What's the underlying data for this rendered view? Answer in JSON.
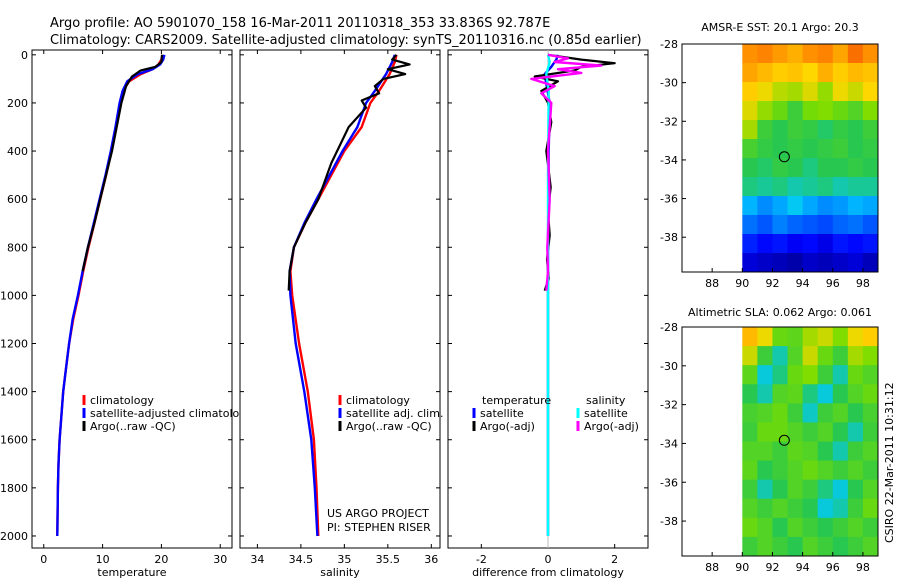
{
  "header": {
    "line1": "Argo profile: AO 5901070_158 16-Mar-2011 20110318_353 33.836S 92.787E",
    "line2": "Climatology: CARS2009. Satellite-adjusted climatology: synTS_20110316.nc (0.85d earlier)"
  },
  "credit": "CSIRO 22-Mar-2011 10:31:12",
  "project": {
    "line1": "US ARGO PROJECT",
    "line2": "PI: STEPHEN RISER"
  },
  "colors": {
    "climatology": "#ff0000",
    "satellite": "#0000ff",
    "argo": "#000000",
    "sal_satellite": "#00ffff",
    "sal_argo": "#ff00ff"
  },
  "chart_data": [
    {
      "id": "temperature",
      "type": "line",
      "xlabel": "temperature",
      "ylabel": "",
      "xlim": [
        -2,
        32
      ],
      "ylim": [
        2050,
        -20
      ],
      "xticks": [
        0,
        10,
        20,
        30
      ],
      "yticks": [
        0,
        200,
        400,
        600,
        800,
        1000,
        1200,
        1400,
        1600,
        1800,
        2000
      ],
      "legend": {
        "position": "lower-center",
        "entries": [
          "climatology",
          "satellite-adjusted climatology",
          "Argo(..raw -QC)"
        ]
      },
      "series": [
        {
          "name": "climatology",
          "color": "#ff0000",
          "x": [
            20.2,
            20.0,
            19.5,
            18.5,
            16.5,
            14.5,
            13.5,
            13.0,
            12.3,
            11.5,
            10.6,
            9.6,
            8.6,
            7.6,
            6.7,
            5.9,
            5.0,
            4.3,
            3.8,
            3.3,
            3.0,
            2.7,
            2.5,
            2.4,
            2.3
          ],
          "y": [
            0,
            20,
            40,
            60,
            80,
            110,
            150,
            200,
            300,
            400,
            500,
            600,
            700,
            800,
            900,
            1000,
            1100,
            1200,
            1300,
            1400,
            1500,
            1600,
            1700,
            1800,
            2000
          ]
        },
        {
          "name": "satellite-adjusted climatology",
          "color": "#0000ff",
          "x": [
            20.5,
            20.3,
            19.8,
            18.5,
            16.0,
            14.2,
            13.4,
            12.9,
            12.2,
            11.4,
            10.5,
            9.5,
            8.5,
            7.5,
            6.6,
            5.8,
            4.9,
            4.3,
            3.8,
            3.3,
            3.0,
            2.7,
            2.5,
            2.4,
            2.3
          ],
          "y": [
            0,
            20,
            40,
            60,
            80,
            110,
            150,
            200,
            300,
            400,
            500,
            600,
            700,
            800,
            900,
            1000,
            1100,
            1200,
            1300,
            1400,
            1500,
            1600,
            1700,
            1800,
            2000
          ]
        },
        {
          "name": "Argo(..raw -QC)",
          "color": "#000000",
          "x": [
            20.1,
            20.0,
            19.0,
            16.5,
            15.0,
            14.0,
            13.2,
            12.4,
            11.6,
            10.6,
            9.6,
            8.6,
            7.5,
            6.6
          ],
          "y": [
            0,
            30,
            50,
            65,
            90,
            130,
            200,
            300,
            400,
            500,
            600,
            700,
            800,
            900
          ]
        }
      ]
    },
    {
      "id": "salinity",
      "type": "line",
      "xlabel": "salinity",
      "ylabel": "",
      "xlim": [
        33.8,
        36.1
      ],
      "ylim": [
        2050,
        -20
      ],
      "xticks": [
        34,
        34.5,
        35,
        35.5,
        36
      ],
      "yticks": [
        0,
        200,
        400,
        600,
        800,
        1000,
        1200,
        1400,
        1600,
        1800,
        2000
      ],
      "legend": {
        "position": "lower-right",
        "entries": [
          "climatology",
          "satellite adj. clim.",
          "Argo(..raw -QC)"
        ]
      },
      "series": [
        {
          "name": "climatology",
          "color": "#ff0000",
          "x": [
            35.6,
            35.58,
            35.52,
            35.4,
            35.3,
            35.2,
            35.0,
            34.85,
            34.7,
            34.55,
            34.42,
            34.38,
            34.4,
            34.48,
            34.58,
            34.65,
            34.68,
            34.7
          ],
          "y": [
            0,
            30,
            80,
            150,
            200,
            300,
            400,
            500,
            600,
            700,
            800,
            900,
            1000,
            1200,
            1400,
            1600,
            1800,
            2000
          ]
        },
        {
          "name": "satellite adj. clim.",
          "color": "#0000ff",
          "x": [
            35.58,
            35.55,
            35.48,
            35.35,
            35.25,
            35.15,
            34.98,
            34.83,
            34.68,
            34.54,
            34.42,
            34.37,
            34.38,
            34.44,
            34.54,
            34.62,
            34.66,
            34.69
          ],
          "y": [
            0,
            30,
            80,
            150,
            200,
            300,
            400,
            500,
            600,
            700,
            800,
            900,
            1000,
            1200,
            1400,
            1600,
            1800,
            2000
          ]
        },
        {
          "name": "Argo(..raw -QC)",
          "color": "#000000",
          "x": [
            35.6,
            35.55,
            35.75,
            35.5,
            35.7,
            35.45,
            35.35,
            35.4,
            35.2,
            35.25,
            35.05,
            34.85,
            34.7,
            34.55,
            34.42,
            34.37,
            34.36
          ],
          "y": [
            0,
            20,
            40,
            60,
            80,
            100,
            130,
            160,
            190,
            220,
            300,
            450,
            600,
            700,
            800,
            900,
            980
          ]
        }
      ]
    },
    {
      "id": "difference",
      "type": "line",
      "xlabel": "difference from climatology",
      "ylabel": "",
      "xlim": [
        -3,
        3
      ],
      "ylim": [
        2050,
        -20
      ],
      "xticks": [
        -2,
        0,
        2
      ],
      "yticks": [
        0,
        200,
        400,
        600,
        800,
        1000,
        1200,
        1400,
        1600,
        1800,
        2000
      ],
      "legend": {
        "position": "lower-center",
        "groups": [
          {
            "title": "temperature",
            "entries": [
              "satellite",
              "Argo(-adj)"
            ]
          },
          {
            "title": "salinity",
            "entries": [
              "satellite",
              "Argo(-adj)"
            ]
          }
        ]
      },
      "series": [
        {
          "name": "temperature satellite",
          "color": "#0000ff",
          "x": [
            0.3,
            0.25,
            0.1,
            -0.1,
            -0.05,
            0.05,
            0.02,
            0.0,
            0.0
          ],
          "y": [
            0,
            20,
            50,
            80,
            120,
            200,
            400,
            800,
            2000
          ]
        },
        {
          "name": "temperature Argo(-adj)",
          "color": "#000000",
          "x": [
            0.0,
            1.0,
            2.0,
            1.0,
            0.8,
            -0.4,
            0.3,
            -0.2,
            0.0,
            0.1,
            -0.05,
            0.08,
            0.0,
            0.05,
            -0.03,
            0.02,
            -0.1
          ],
          "y": [
            0,
            20,
            35,
            50,
            65,
            90,
            110,
            150,
            200,
            280,
            400,
            550,
            650,
            750,
            850,
            930,
            980
          ]
        },
        {
          "name": "salinity satellite",
          "color": "#00ffff",
          "x": [
            0.0,
            0.05,
            -0.05,
            0.02,
            0.0,
            0.0
          ],
          "y": [
            0,
            30,
            80,
            150,
            500,
            2000
          ]
        },
        {
          "name": "salinity Argo(-adj)",
          "color": "#ff00ff",
          "x": [
            0.0,
            0.6,
            0.2,
            1.6,
            0.3,
            1.0,
            -0.5,
            0.2,
            -0.2,
            0.1,
            0.0,
            0.05,
            -0.02,
            0.0,
            -0.05
          ],
          "y": [
            0,
            15,
            30,
            45,
            60,
            75,
            100,
            130,
            160,
            200,
            400,
            600,
            800,
            900,
            980
          ]
        }
      ]
    },
    {
      "id": "sst-map",
      "type": "heatmap",
      "title": "AMSR-E SST: 20.1  Argo: 20.3",
      "xlim": [
        86,
        99
      ],
      "ylim": [
        -39.8,
        -28
      ],
      "xticks": [
        88,
        90,
        92,
        94,
        96,
        98
      ],
      "yticks": [
        -28,
        -30,
        -32,
        -34,
        -36,
        -38
      ],
      "marker": {
        "lon": 92.787,
        "lat": -33.836
      },
      "data_coverage_lon": [
        90,
        99
      ],
      "colorscale": "jet",
      "value_range": [
        17,
        23
      ],
      "rows_lat_top_to_bottom": [
        -28.5,
        -29.5,
        -30.5,
        -31.5,
        -32.5,
        -33.5,
        -34.5,
        -35.5,
        -36.5,
        -37.5,
        -38.5,
        -39.5
      ],
      "cols_lon_left_to_right": [
        90.5,
        91.5,
        92.5,
        93.5,
        94.5,
        95.5,
        96.5,
        97.5,
        98.5
      ],
      "values": [
        [
          22.2,
          22.3,
          22.1,
          21.9,
          22.2,
          22.3,
          22.0,
          22.4,
          22.2
        ],
        [
          22.0,
          21.8,
          21.6,
          21.7,
          21.5,
          21.9,
          21.6,
          21.8,
          21.7
        ],
        [
          21.6,
          21.4,
          21.1,
          21.0,
          21.3,
          20.9,
          21.4,
          21.2,
          21.5
        ],
        [
          21.3,
          20.9,
          20.6,
          20.2,
          20.7,
          20.8,
          20.6,
          20.4,
          20.8
        ],
        [
          21.0,
          20.2,
          20.0,
          20.2,
          20.1,
          19.9,
          20.1,
          20.0,
          20.2
        ],
        [
          20.3,
          20.1,
          20.0,
          20.1,
          20.0,
          20.1,
          20.2,
          20.0,
          20.1
        ],
        [
          20.0,
          19.9,
          20.1,
          20.0,
          19.8,
          20.0,
          20.0,
          20.1,
          20.0
        ],
        [
          19.8,
          19.7,
          19.8,
          19.6,
          19.7,
          19.8,
          19.6,
          19.7,
          19.7
        ],
        [
          19.1,
          18.8,
          19.0,
          19.3,
          19.0,
          18.8,
          18.9,
          19.1,
          19.0
        ],
        [
          18.6,
          18.4,
          18.7,
          18.5,
          18.4,
          18.3,
          18.5,
          18.6,
          18.4
        ],
        [
          18.0,
          17.8,
          17.9,
          17.7,
          17.8,
          17.6,
          17.9,
          17.8,
          17.9
        ],
        [
          17.5,
          17.4,
          17.3,
          17.2,
          17.4,
          17.3,
          17.4,
          17.5,
          17.3
        ]
      ]
    },
    {
      "id": "sla-map",
      "type": "heatmap",
      "title": "Altimetric SLA: 0.062  Argo: 0.061",
      "xlim": [
        86,
        99
      ],
      "ylim": [
        -39.8,
        -28
      ],
      "xticks": [
        88,
        90,
        92,
        94,
        96,
        98
      ],
      "yticks": [
        -28,
        -30,
        -32,
        -34,
        -36,
        -38
      ],
      "marker": {
        "lon": 92.787,
        "lat": -33.836
      },
      "data_coverage_lon": [
        90,
        99
      ],
      "colorscale": "jet",
      "value_range": [
        -0.3,
        0.3
      ],
      "rows_lat_top_to_bottom": [
        -28.5,
        -29.5,
        -30.5,
        -31.5,
        -32.5,
        -33.5,
        -34.5,
        -35.5,
        -36.5,
        -37.5,
        -38.5,
        -39.5
      ],
      "cols_lon_left_to_right": [
        90.5,
        91.5,
        92.5,
        93.5,
        94.5,
        95.5,
        96.5,
        97.5,
        98.5
      ],
      "values": [
        [
          0.18,
          0.14,
          0.06,
          0.05,
          0.1,
          0.12,
          0.08,
          0.14,
          0.16
        ],
        [
          0.12,
          0.02,
          -0.04,
          0.04,
          0.12,
          0.06,
          0.02,
          0.1,
          0.08
        ],
        [
          0.05,
          -0.06,
          -0.02,
          0.06,
          0.08,
          0.02,
          -0.04,
          0.06,
          0.04
        ],
        [
          0.0,
          -0.04,
          0.04,
          0.05,
          -0.02,
          -0.06,
          0.0,
          0.04,
          0.06
        ],
        [
          0.03,
          0.04,
          0.06,
          0.02,
          -0.05,
          0.02,
          0.04,
          0.0,
          0.03
        ],
        [
          0.02,
          0.06,
          0.06,
          0.04,
          0.02,
          0.04,
          0.0,
          -0.04,
          0.02
        ],
        [
          0.04,
          0.04,
          0.02,
          0.05,
          0.04,
          0.0,
          -0.04,
          0.02,
          0.04
        ],
        [
          0.05,
          0.0,
          0.02,
          0.04,
          0.06,
          0.04,
          0.02,
          0.04,
          0.02
        ],
        [
          0.02,
          -0.04,
          0.0,
          0.04,
          0.02,
          -0.02,
          -0.06,
          0.0,
          0.04
        ],
        [
          0.04,
          0.02,
          0.04,
          0.02,
          0.0,
          -0.06,
          -0.04,
          0.02,
          0.06
        ],
        [
          0.06,
          0.04,
          0.0,
          0.04,
          0.02,
          0.0,
          0.02,
          0.04,
          0.02
        ],
        [
          0.02,
          0.04,
          0.02,
          0.0,
          0.04,
          0.02,
          0.0,
          0.02,
          0.04
        ]
      ]
    }
  ]
}
